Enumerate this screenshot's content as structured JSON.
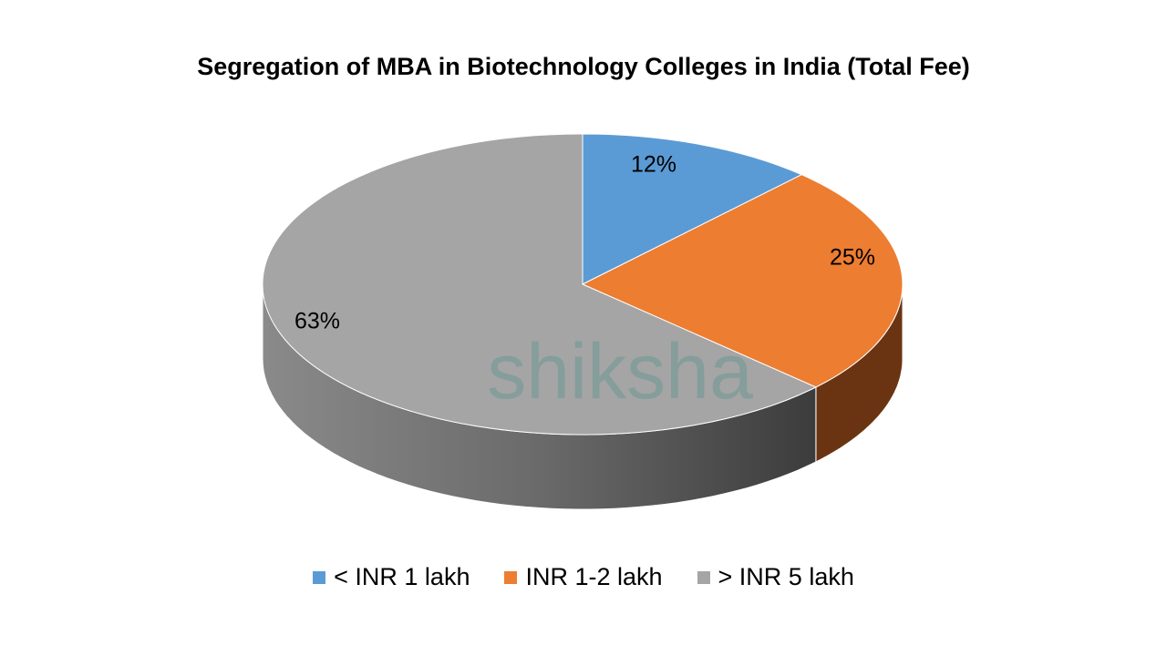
{
  "chart_data": {
    "type": "pie",
    "title": "Segregation of MBA in Biotechnology Colleges in India (Total Fee)",
    "style": "3d",
    "categories": [
      "< INR 1 lakh",
      "INR 1-2 lakh",
      "> INR 5 lakh"
    ],
    "values": [
      12,
      25,
      63
    ],
    "data_labels": [
      "12%",
      "25%",
      "63%"
    ],
    "colors": [
      "#5B9BD5",
      "#ED7D31",
      "#A5A5A5"
    ],
    "side_colors": [
      "#2E5F8F",
      "#6A3412",
      "#555555"
    ],
    "legend_position": "bottom"
  },
  "watermark": "shiksha"
}
